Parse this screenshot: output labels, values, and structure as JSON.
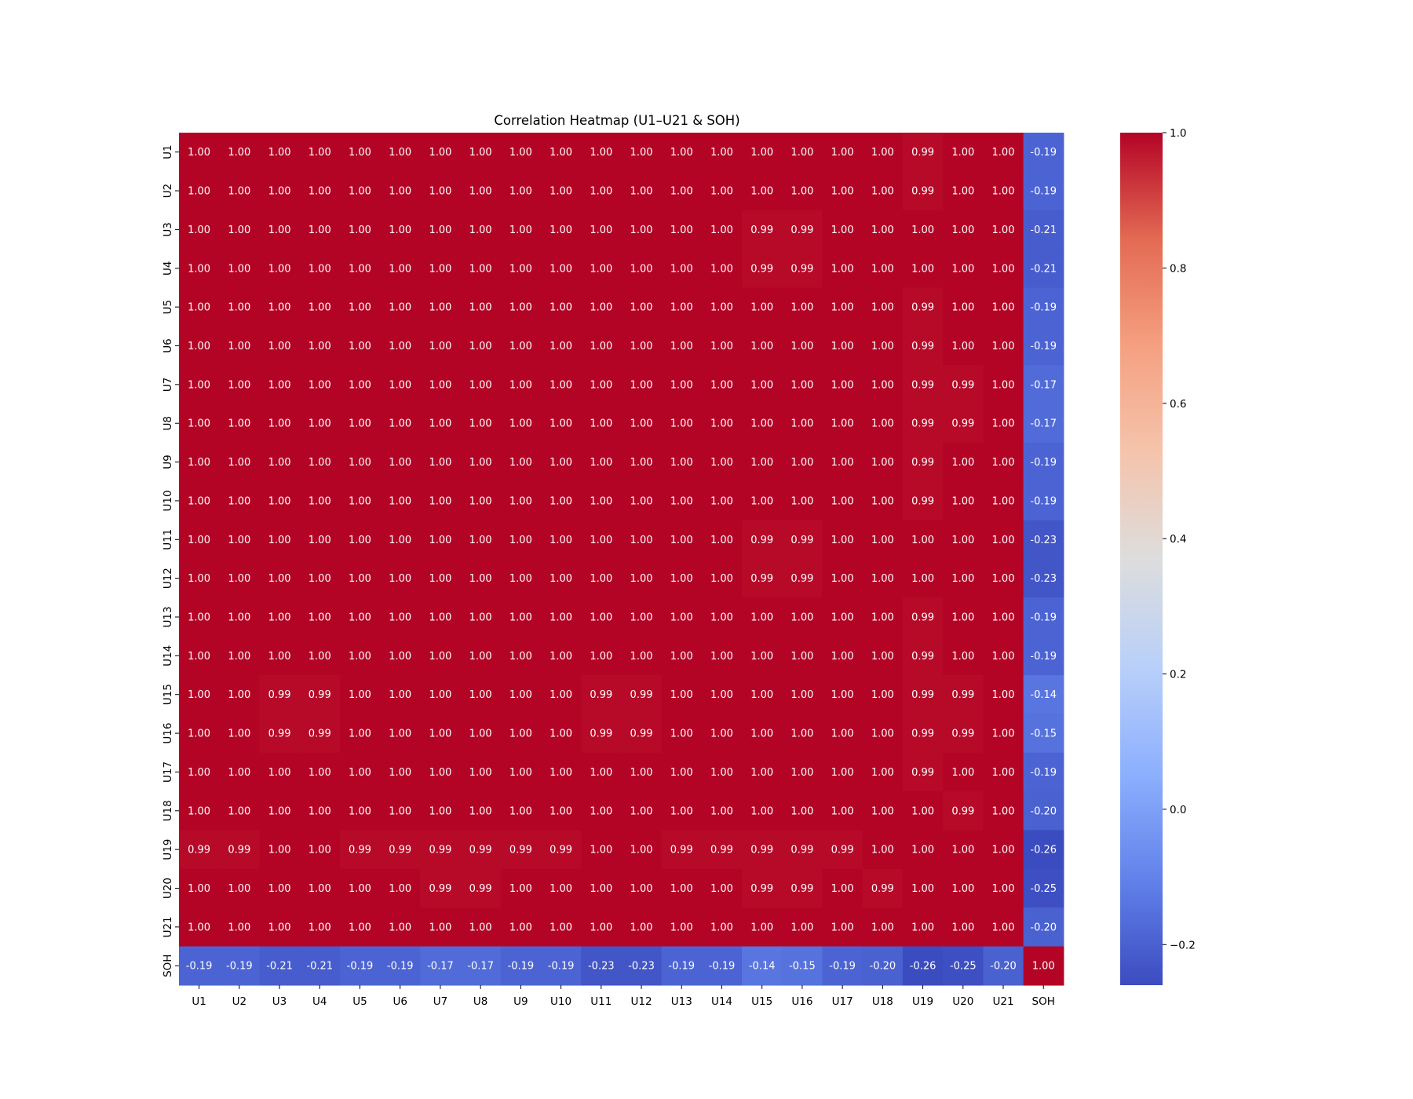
{
  "chart_data": {
    "type": "heatmap",
    "title": "Correlation Heatmap (U1–U21 & SOH)",
    "xlabel": "",
    "ylabel": "",
    "colormap": "coolwarm",
    "color_range": [
      -0.26,
      1.0
    ],
    "colorbar_ticks": [
      1.0,
      0.8,
      0.6,
      0.4,
      0.2,
      0.0,
      -0.2
    ],
    "colorbar_tick_labels": [
      "1.0",
      "0.8",
      "0.6",
      "0.4",
      "0.2",
      "0.0",
      "−0.2"
    ],
    "colormap_stops": [
      "#3b4cc0",
      "#6282ea",
      "#8db0fe",
      "#b9d0f9",
      "#dddddd",
      "#f5c4ac",
      "#f5a081",
      "#e36a53",
      "#b40426"
    ],
    "x_labels": [
      "U1",
      "U2",
      "U3",
      "U4",
      "U5",
      "U6",
      "U7",
      "U8",
      "U9",
      "U10",
      "U11",
      "U12",
      "U13",
      "U14",
      "U15",
      "U16",
      "U17",
      "U18",
      "U19",
      "U20",
      "U21",
      "SOH"
    ],
    "y_labels": [
      "U1",
      "U2",
      "U3",
      "U4",
      "U5",
      "U6",
      "U7",
      "U8",
      "U9",
      "U10",
      "U11",
      "U12",
      "U13",
      "U14",
      "U15",
      "U16",
      "U17",
      "U18",
      "U19",
      "U20",
      "U21",
      "SOH"
    ],
    "values": [
      [
        1.0,
        1.0,
        1.0,
        1.0,
        1.0,
        1.0,
        1.0,
        1.0,
        1.0,
        1.0,
        1.0,
        1.0,
        1.0,
        1.0,
        1.0,
        1.0,
        1.0,
        1.0,
        0.99,
        1.0,
        1.0,
        -0.19
      ],
      [
        1.0,
        1.0,
        1.0,
        1.0,
        1.0,
        1.0,
        1.0,
        1.0,
        1.0,
        1.0,
        1.0,
        1.0,
        1.0,
        1.0,
        1.0,
        1.0,
        1.0,
        1.0,
        0.99,
        1.0,
        1.0,
        -0.19
      ],
      [
        1.0,
        1.0,
        1.0,
        1.0,
        1.0,
        1.0,
        1.0,
        1.0,
        1.0,
        1.0,
        1.0,
        1.0,
        1.0,
        1.0,
        0.99,
        0.99,
        1.0,
        1.0,
        1.0,
        1.0,
        1.0,
        -0.21
      ],
      [
        1.0,
        1.0,
        1.0,
        1.0,
        1.0,
        1.0,
        1.0,
        1.0,
        1.0,
        1.0,
        1.0,
        1.0,
        1.0,
        1.0,
        0.99,
        0.99,
        1.0,
        1.0,
        1.0,
        1.0,
        1.0,
        -0.21
      ],
      [
        1.0,
        1.0,
        1.0,
        1.0,
        1.0,
        1.0,
        1.0,
        1.0,
        1.0,
        1.0,
        1.0,
        1.0,
        1.0,
        1.0,
        1.0,
        1.0,
        1.0,
        1.0,
        0.99,
        1.0,
        1.0,
        -0.19
      ],
      [
        1.0,
        1.0,
        1.0,
        1.0,
        1.0,
        1.0,
        1.0,
        1.0,
        1.0,
        1.0,
        1.0,
        1.0,
        1.0,
        1.0,
        1.0,
        1.0,
        1.0,
        1.0,
        0.99,
        1.0,
        1.0,
        -0.19
      ],
      [
        1.0,
        1.0,
        1.0,
        1.0,
        1.0,
        1.0,
        1.0,
        1.0,
        1.0,
        1.0,
        1.0,
        1.0,
        1.0,
        1.0,
        1.0,
        1.0,
        1.0,
        1.0,
        0.99,
        0.99,
        1.0,
        -0.17
      ],
      [
        1.0,
        1.0,
        1.0,
        1.0,
        1.0,
        1.0,
        1.0,
        1.0,
        1.0,
        1.0,
        1.0,
        1.0,
        1.0,
        1.0,
        1.0,
        1.0,
        1.0,
        1.0,
        0.99,
        0.99,
        1.0,
        -0.17
      ],
      [
        1.0,
        1.0,
        1.0,
        1.0,
        1.0,
        1.0,
        1.0,
        1.0,
        1.0,
        1.0,
        1.0,
        1.0,
        1.0,
        1.0,
        1.0,
        1.0,
        1.0,
        1.0,
        0.99,
        1.0,
        1.0,
        -0.19
      ],
      [
        1.0,
        1.0,
        1.0,
        1.0,
        1.0,
        1.0,
        1.0,
        1.0,
        1.0,
        1.0,
        1.0,
        1.0,
        1.0,
        1.0,
        1.0,
        1.0,
        1.0,
        1.0,
        0.99,
        1.0,
        1.0,
        -0.19
      ],
      [
        1.0,
        1.0,
        1.0,
        1.0,
        1.0,
        1.0,
        1.0,
        1.0,
        1.0,
        1.0,
        1.0,
        1.0,
        1.0,
        1.0,
        0.99,
        0.99,
        1.0,
        1.0,
        1.0,
        1.0,
        1.0,
        -0.23
      ],
      [
        1.0,
        1.0,
        1.0,
        1.0,
        1.0,
        1.0,
        1.0,
        1.0,
        1.0,
        1.0,
        1.0,
        1.0,
        1.0,
        1.0,
        0.99,
        0.99,
        1.0,
        1.0,
        1.0,
        1.0,
        1.0,
        -0.23
      ],
      [
        1.0,
        1.0,
        1.0,
        1.0,
        1.0,
        1.0,
        1.0,
        1.0,
        1.0,
        1.0,
        1.0,
        1.0,
        1.0,
        1.0,
        1.0,
        1.0,
        1.0,
        1.0,
        0.99,
        1.0,
        1.0,
        -0.19
      ],
      [
        1.0,
        1.0,
        1.0,
        1.0,
        1.0,
        1.0,
        1.0,
        1.0,
        1.0,
        1.0,
        1.0,
        1.0,
        1.0,
        1.0,
        1.0,
        1.0,
        1.0,
        1.0,
        0.99,
        1.0,
        1.0,
        -0.19
      ],
      [
        1.0,
        1.0,
        0.99,
        0.99,
        1.0,
        1.0,
        1.0,
        1.0,
        1.0,
        1.0,
        0.99,
        0.99,
        1.0,
        1.0,
        1.0,
        1.0,
        1.0,
        1.0,
        0.99,
        0.99,
        1.0,
        -0.14
      ],
      [
        1.0,
        1.0,
        0.99,
        0.99,
        1.0,
        1.0,
        1.0,
        1.0,
        1.0,
        1.0,
        0.99,
        0.99,
        1.0,
        1.0,
        1.0,
        1.0,
        1.0,
        1.0,
        0.99,
        0.99,
        1.0,
        -0.15
      ],
      [
        1.0,
        1.0,
        1.0,
        1.0,
        1.0,
        1.0,
        1.0,
        1.0,
        1.0,
        1.0,
        1.0,
        1.0,
        1.0,
        1.0,
        1.0,
        1.0,
        1.0,
        1.0,
        0.99,
        1.0,
        1.0,
        -0.19
      ],
      [
        1.0,
        1.0,
        1.0,
        1.0,
        1.0,
        1.0,
        1.0,
        1.0,
        1.0,
        1.0,
        1.0,
        1.0,
        1.0,
        1.0,
        1.0,
        1.0,
        1.0,
        1.0,
        1.0,
        0.99,
        1.0,
        -0.2
      ],
      [
        0.99,
        0.99,
        1.0,
        1.0,
        0.99,
        0.99,
        0.99,
        0.99,
        0.99,
        0.99,
        1.0,
        1.0,
        0.99,
        0.99,
        0.99,
        0.99,
        0.99,
        1.0,
        1.0,
        1.0,
        1.0,
        -0.26
      ],
      [
        1.0,
        1.0,
        1.0,
        1.0,
        1.0,
        1.0,
        0.99,
        0.99,
        1.0,
        1.0,
        1.0,
        1.0,
        1.0,
        1.0,
        0.99,
        0.99,
        1.0,
        0.99,
        1.0,
        1.0,
        1.0,
        -0.25
      ],
      [
        1.0,
        1.0,
        1.0,
        1.0,
        1.0,
        1.0,
        1.0,
        1.0,
        1.0,
        1.0,
        1.0,
        1.0,
        1.0,
        1.0,
        1.0,
        1.0,
        1.0,
        1.0,
        1.0,
        1.0,
        1.0,
        -0.2
      ],
      [
        -0.19,
        -0.19,
        -0.21,
        -0.21,
        -0.19,
        -0.19,
        -0.17,
        -0.17,
        -0.19,
        -0.19,
        -0.23,
        -0.23,
        -0.19,
        -0.19,
        -0.14,
        -0.15,
        -0.19,
        -0.2,
        -0.26,
        -0.25,
        -0.2,
        1.0
      ]
    ]
  }
}
